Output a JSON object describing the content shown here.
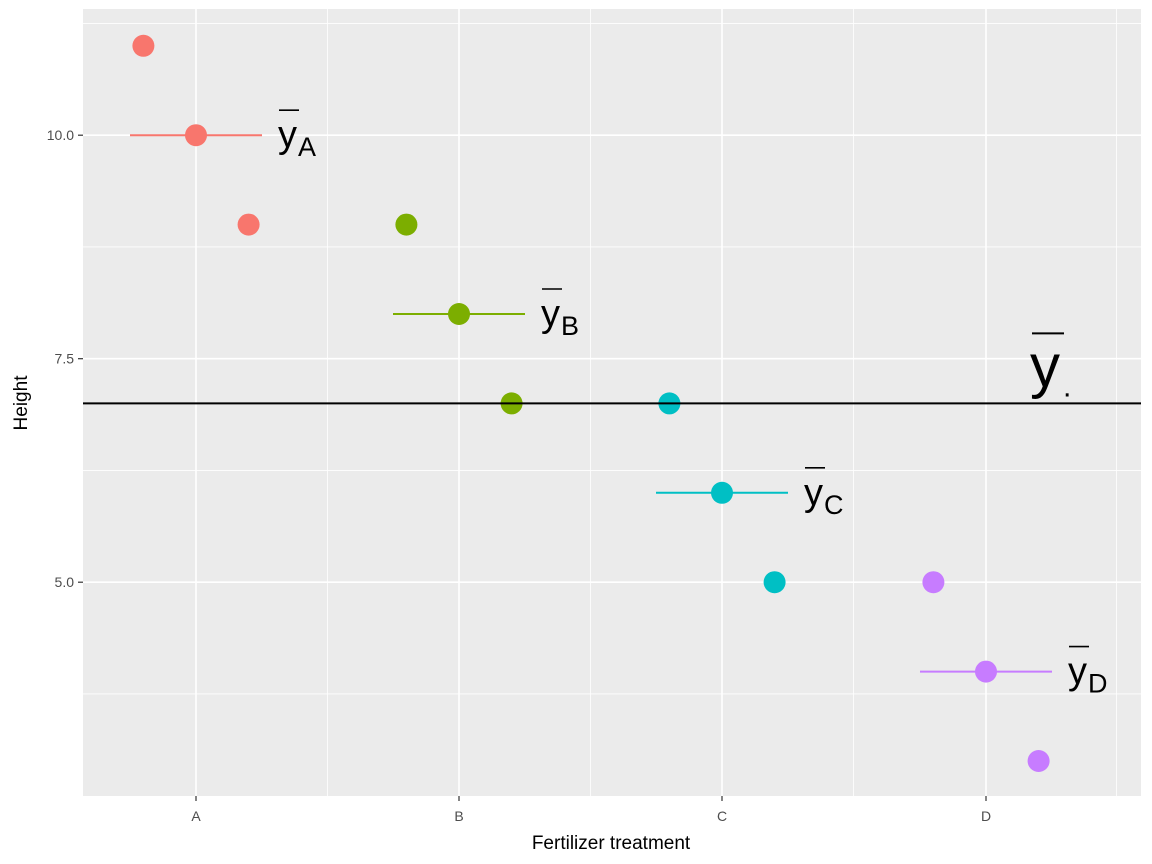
{
  "chart_data": {
    "type": "scatter",
    "title": "",
    "xlabel": "Fertilizer treatment",
    "ylabel": "Height",
    "categories": [
      "A",
      "B",
      "C",
      "D"
    ],
    "ylim": [
      2.5,
      11.5
    ],
    "yticks": [
      5.0,
      7.5,
      10.0
    ],
    "ytick_labels": [
      "5.0",
      "7.5",
      "10.0"
    ],
    "grid": true,
    "legend": "none",
    "series": [
      {
        "group": "A",
        "color": "#F8766D",
        "points": [
          {
            "x": "A",
            "offset": -0.2,
            "y": 11
          },
          {
            "x": "A",
            "offset": 0,
            "y": 10
          },
          {
            "x": "A",
            "offset": 0.2,
            "y": 9
          }
        ],
        "mean": 10,
        "mean_label": "y",
        "mean_sub": "A"
      },
      {
        "group": "B",
        "color": "#7CAE00",
        "points": [
          {
            "x": "B",
            "offset": -0.2,
            "y": 9
          },
          {
            "x": "B",
            "offset": 0,
            "y": 8
          },
          {
            "x": "B",
            "offset": 0.2,
            "y": 7
          }
        ],
        "mean": 8,
        "mean_label": "y",
        "mean_sub": "B"
      },
      {
        "group": "C",
        "color": "#00BFC4",
        "points": [
          {
            "x": "C",
            "offset": -0.2,
            "y": 7
          },
          {
            "x": "C",
            "offset": 0,
            "y": 6
          },
          {
            "x": "C",
            "offset": 0.2,
            "y": 5
          }
        ],
        "mean": 6,
        "mean_label": "y",
        "mean_sub": "C"
      },
      {
        "group": "D",
        "color": "#C77CFF",
        "points": [
          {
            "x": "D",
            "offset": -0.2,
            "y": 5
          },
          {
            "x": "D",
            "offset": 0,
            "y": 4
          },
          {
            "x": "D",
            "offset": 0.2,
            "y": 3
          }
        ],
        "mean": 4,
        "mean_label": "y",
        "mean_sub": "D"
      }
    ],
    "grand_mean": {
      "y": 7,
      "label": "y",
      "sub": "."
    }
  }
}
